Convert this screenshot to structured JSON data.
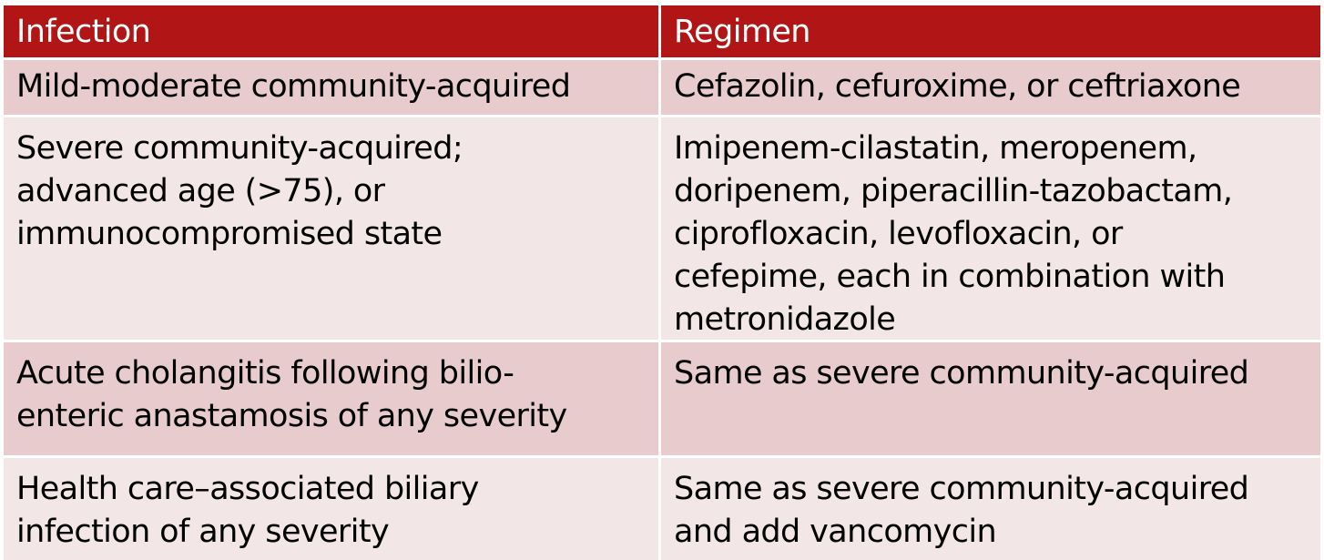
{
  "table": {
    "headers": [
      "Infection",
      "Regimen"
    ],
    "rows": [
      {
        "infection": [
          "Mild-moderate community-acquired"
        ],
        "regimen": [
          "Cefazolin, cefuroxime, or ceftriaxone"
        ]
      },
      {
        "infection": [
          "Severe community-acquired;",
          "advanced age (>75), or",
          "immunocompromised state"
        ],
        "regimen": [
          "Imipenem-cilastatin, meropenem,",
          "doripenem, piperacillin-tazobactam,",
          "ciprofloxacin, levofloxacin, or",
          "cefepime, each in combination with",
          "metronidazole"
        ]
      },
      {
        "infection": [
          "Acute cholangitis following bilio-",
          "enteric anastamosis of any severity"
        ],
        "regimen": [
          "Same as severe community-acquired"
        ]
      },
      {
        "infection": [
          "Health care–associated biliary",
          "infection of any severity"
        ],
        "regimen": [
          "Same as severe community-acquired",
          "and add vancomycin"
        ]
      }
    ]
  },
  "colors": {
    "header_background": "#b11516",
    "header_text": "#ffffff",
    "row_band_dark": "#e7cbcd",
    "row_band_light": "#f2e6e6",
    "body_text": "#000000"
  }
}
